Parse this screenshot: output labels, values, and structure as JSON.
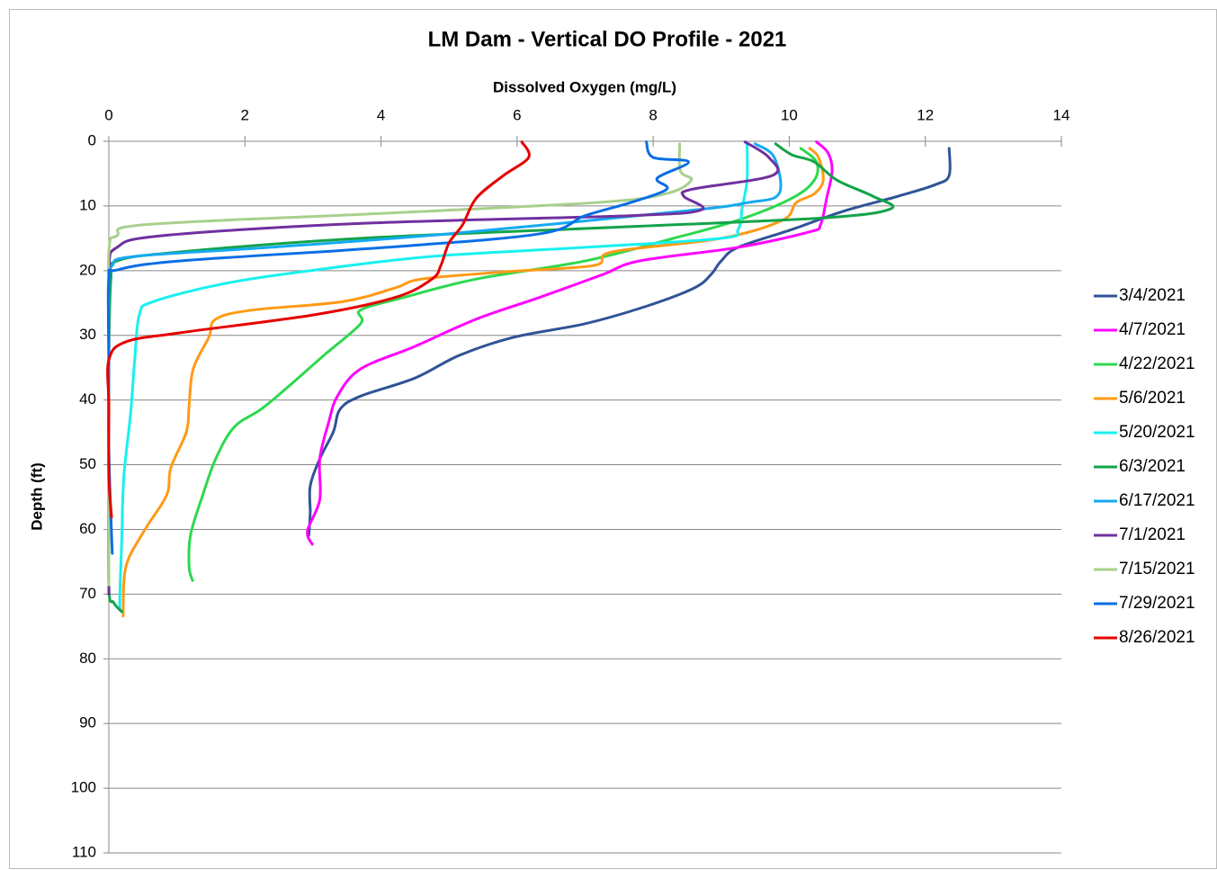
{
  "chart_data": {
    "type": "line",
    "title": "LM Dam - Vertical DO Profile - 2021",
    "x_label": "Dissolved Oxygen (mg/L)",
    "y_label": "Depth (ft)",
    "xlim": [
      0,
      14
    ],
    "xticks": [
      0,
      2,
      4,
      6,
      8,
      10,
      12,
      14
    ],
    "ylim": [
      0,
      110
    ],
    "yticks": [
      0,
      10,
      20,
      30,
      40,
      50,
      60,
      70,
      80,
      90,
      100,
      110
    ],
    "y_inverted": true,
    "x_axis_position": "top",
    "grid": true,
    "legend": "right",
    "series": [
      {
        "name": "3/4/2021",
        "color": "#2f5496",
        "x": [
          12.35,
          12.35,
          12.15,
          11.6,
          10.8,
          10.05,
          9.25,
          9.0,
          8.85,
          8.6,
          7.9,
          7.0,
          5.95,
          5.15,
          4.5,
          3.7,
          3.4,
          3.3,
          3.1,
          2.96,
          2.96,
          2.94
        ],
        "values": [
          1.1,
          5.3,
          6.7,
          8.5,
          10.8,
          13.6,
          16.4,
          18.5,
          20.6,
          22.7,
          25.5,
          28.2,
          30.3,
          33.1,
          36.6,
          39.4,
          41.4,
          44.9,
          49.1,
          53.3,
          57.4,
          60.9
        ]
      },
      {
        "name": "4/7/2021",
        "color": "#ff00ff",
        "x": [
          10.4,
          10.57,
          10.63,
          10.55,
          10.46,
          10.3,
          9.25,
          7.8,
          7.26,
          6.34,
          5.4,
          4.5,
          3.7,
          3.36,
          3.23,
          3.1,
          3.1,
          2.92,
          2.99
        ],
        "values": [
          0.1,
          1.8,
          4.6,
          8.8,
          12.9,
          14.0,
          16.4,
          18.5,
          20.6,
          24.1,
          27.5,
          31.7,
          35.2,
          39.4,
          43.5,
          49.1,
          55.4,
          60.2,
          62.3
        ]
      },
      {
        "name": "4/22/2021",
        "color": "#2ed84f",
        "x": [
          10.17,
          10.4,
          10.37,
          10.04,
          9.25,
          8.3,
          7.0,
          5.4,
          4.35,
          3.7,
          3.7,
          3.16,
          2.63,
          2.24,
          1.84,
          1.57,
          1.38,
          1.2,
          1.18,
          1.23
        ],
        "values": [
          1.1,
          3.2,
          6.0,
          8.8,
          12.2,
          15.0,
          18.5,
          21.3,
          24.1,
          26.1,
          28.2,
          33.1,
          38.0,
          41.4,
          44.2,
          49.1,
          54.7,
          60.9,
          65.8,
          67.9
        ]
      },
      {
        "name": "5/6/2021",
        "color": "#ff9a14",
        "x": [
          10.3,
          10.43,
          10.5,
          10.37,
          10.1,
          9.9,
          9.0,
          7.4,
          7.13,
          5.8,
          4.6,
          4.2,
          3.43,
          2.1,
          1.57,
          1.47,
          1.24,
          1.18,
          1.14,
          0.91,
          0.85,
          0.52,
          0.25,
          0.21
        ],
        "values": [
          1.1,
          2.5,
          6.0,
          8.1,
          9.5,
          12.2,
          15.0,
          17.1,
          19.2,
          20.2,
          21.3,
          22.7,
          24.8,
          26.1,
          27.5,
          30.3,
          35.2,
          40.8,
          44.9,
          50.5,
          54.7,
          60.2,
          65.8,
          73.4
        ]
      },
      {
        "name": "5/20/2021",
        "color": "#19f0f0",
        "x": [
          9.38,
          9.38,
          9.31,
          9.25,
          9.0,
          7.0,
          4.75,
          3.03,
          1.7,
          0.65,
          0.45,
          0.38,
          0.32,
          0.22,
          0.19,
          0.16,
          0.19
        ],
        "values": [
          0.4,
          6.0,
          10.2,
          13.6,
          15.0,
          16.4,
          17.8,
          19.9,
          22.0,
          24.8,
          26.8,
          33.8,
          42.1,
          51.9,
          61.6,
          71.3,
          72.7
        ]
      },
      {
        "name": "6/3/2021",
        "color": "#13a34a",
        "x": [
          9.8,
          10.04,
          10.37,
          10.7,
          11.23,
          11.5,
          10.57,
          7.66,
          3.7,
          1.05,
          0.12,
          0.03,
          0,
          0,
          0,
          0.07,
          0.19
        ],
        "values": [
          0.4,
          2.1,
          3.2,
          6.0,
          8.5,
          10.4,
          11.8,
          13.2,
          15.0,
          17.1,
          18.5,
          21.3,
          33.8,
          47.7,
          68.6,
          71.3,
          72.7
        ]
      },
      {
        "name": "6/17/2021",
        "color": "#14aaf0",
        "x": [
          9.5,
          9.78,
          9.85,
          9.38,
          8.45,
          5.0,
          2.37,
          0.38,
          0.05,
          0,
          0,
          0,
          0
        ],
        "values": [
          0.4,
          2.5,
          8.1,
          9.5,
          10.8,
          14.3,
          16.4,
          17.8,
          19.2,
          22.7,
          40.8,
          54.7,
          70.0
        ]
      },
      {
        "name": "7/1/2021",
        "color": "#7030a0",
        "x": [
          9.35,
          9.7,
          9.75,
          8.58,
          8.45,
          8.71,
          7.66,
          3.7,
          0.78,
          0.12,
          0,
          0,
          0,
          0
        ],
        "values": [
          0.1,
          2.5,
          5.3,
          7.4,
          8.5,
          10.6,
          11.5,
          12.7,
          14.6,
          16.4,
          19.9,
          33.8,
          54.7,
          70.0
        ]
      },
      {
        "name": "7/15/2021",
        "color": "#a8d08d",
        "x": [
          8.39,
          8.4,
          8.56,
          8.19,
          7.13,
          3.7,
          0.52,
          0.12,
          0,
          0,
          0,
          0
        ],
        "values": [
          0.4,
          4.6,
          6.0,
          8.1,
          9.5,
          11.3,
          12.9,
          14.6,
          17.1,
          33.8,
          54.7,
          68.6
        ]
      },
      {
        "name": "7/29/2021",
        "color": "#0a6ee6",
        "x": [
          7.9,
          8.0,
          8.52,
          8.06,
          8.2,
          7.66,
          7.0,
          6.34,
          4.08,
          1.05,
          0.12,
          0,
          0,
          0,
          0.05
        ],
        "values": [
          0.1,
          2.5,
          3.2,
          5.7,
          7.4,
          9.5,
          11.5,
          14.3,
          16.4,
          18.5,
          19.9,
          21.3,
          33.8,
          47.7,
          63.7
        ]
      },
      {
        "name": "8/26/2021",
        "color": "#e60000",
        "x": [
          6.07,
          6.17,
          5.8,
          5.4,
          5.2,
          5.0,
          4.88,
          4.75,
          4.22,
          3.03,
          1.05,
          0.25,
          0,
          0,
          0,
          0.04
        ],
        "values": [
          0.1,
          2.5,
          5.3,
          8.8,
          12.9,
          15.7,
          19.2,
          21.3,
          24.1,
          26.8,
          29.6,
          31.0,
          33.8,
          40.8,
          51.9,
          58.1
        ]
      }
    ]
  }
}
